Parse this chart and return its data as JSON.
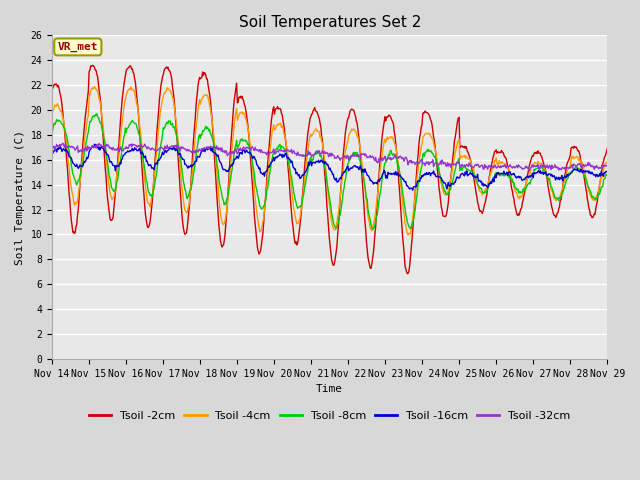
{
  "title": "Soil Temperatures Set 2",
  "xlabel": "Time",
  "ylabel": "Soil Temperature (C)",
  "ylim": [
    0,
    26
  ],
  "yticks": [
    0,
    2,
    4,
    6,
    8,
    10,
    12,
    14,
    16,
    18,
    20,
    22,
    24,
    26
  ],
  "date_labels": [
    "Nov 14",
    "Nov 15",
    "Nov 16",
    "Nov 17",
    "Nov 18",
    "Nov 19",
    "Nov 20",
    "Nov 21",
    "Nov 22",
    "Nov 23",
    "Nov 24",
    "Nov 25",
    "Nov 26",
    "Nov 27",
    "Nov 28",
    "Nov 29"
  ],
  "station_label": "VR_met",
  "colors": {
    "Tsoil -2cm": "#cc0000",
    "Tsoil -4cm": "#ff9900",
    "Tsoil -8cm": "#00cc00",
    "Tsoil -16cm": "#0000cc",
    "Tsoil -32cm": "#9933cc"
  },
  "legend_order": [
    "Tsoil -2cm",
    "Tsoil -4cm",
    "Tsoil -8cm",
    "Tsoil -16cm",
    "Tsoil -32cm"
  ],
  "bg_color": "#d8d8d8",
  "plot_bg": "#e8e8e8",
  "grid_color": "#ffffff",
  "title_fontsize": 11,
  "axis_fontsize": 8,
  "tick_fontsize": 7,
  "legend_fontsize": 8
}
